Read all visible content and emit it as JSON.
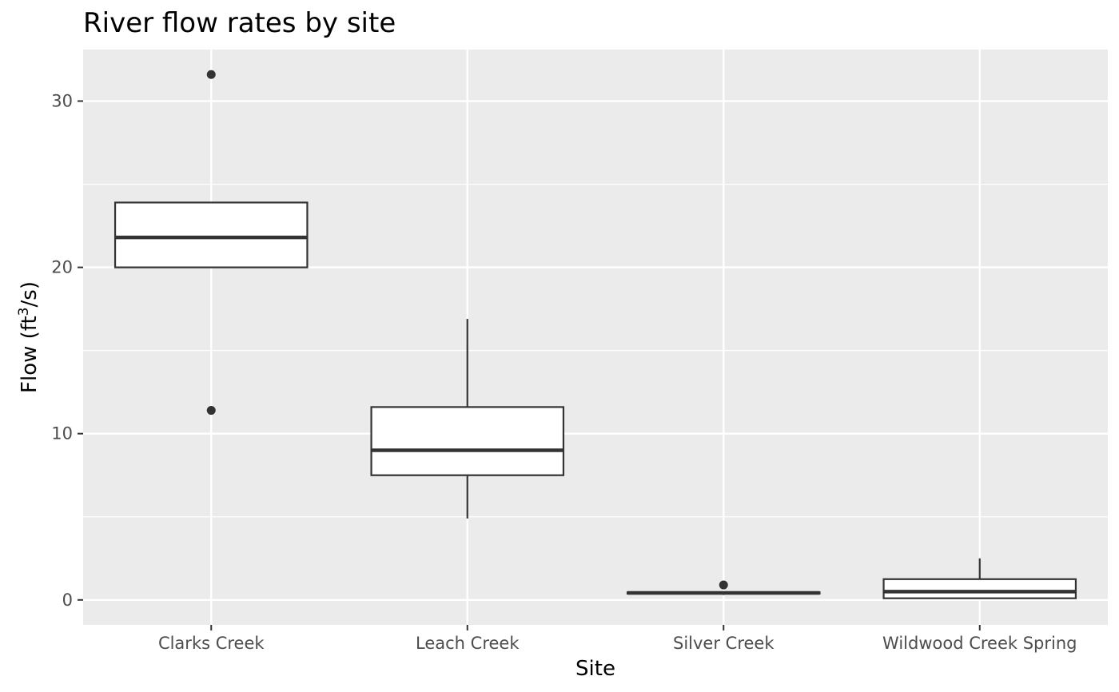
{
  "chart_data": {
    "type": "box",
    "title": "River flow rates by site",
    "xlabel": "Site",
    "ylabel_parts": {
      "before": "Flow (ft",
      "superscript": "3",
      "after": "/s)"
    },
    "ylim": [
      -1.5,
      33.1
    ],
    "y_ticks": [
      0,
      10,
      20,
      30
    ],
    "y_minor_ticks": [
      5,
      15,
      25
    ],
    "grid": true,
    "categories": [
      "Clarks Creek",
      "Leach Creek",
      "Silver Creek",
      "Wildwood Creek Spring"
    ],
    "boxes": [
      {
        "site": "Clarks Creek",
        "whisker_low": 20.0,
        "q1": 20.0,
        "median": 21.8,
        "q3": 23.9,
        "whisker_high": 23.9,
        "outliers": [
          31.6,
          11.4
        ]
      },
      {
        "site": "Leach Creek",
        "whisker_low": 4.9,
        "q1": 7.5,
        "median": 9.0,
        "q3": 11.6,
        "whisker_high": 16.9,
        "outliers": []
      },
      {
        "site": "Silver Creek",
        "whisker_low": 0.3,
        "q1": 0.38,
        "median": 0.42,
        "q3": 0.46,
        "whisker_high": 0.5,
        "outliers": [
          0.9
        ]
      },
      {
        "site": "Wildwood Creek Spring",
        "whisker_low": 0.1,
        "q1": 0.1,
        "median": 0.5,
        "q3": 1.25,
        "whisker_high": 2.5,
        "outliers": []
      }
    ],
    "colors": {
      "panel": "#ebebeb",
      "grid": "#ffffff",
      "box_fill": "#ffffff",
      "box_line": "#333333",
      "tick_text": "#4d4d4d"
    }
  }
}
